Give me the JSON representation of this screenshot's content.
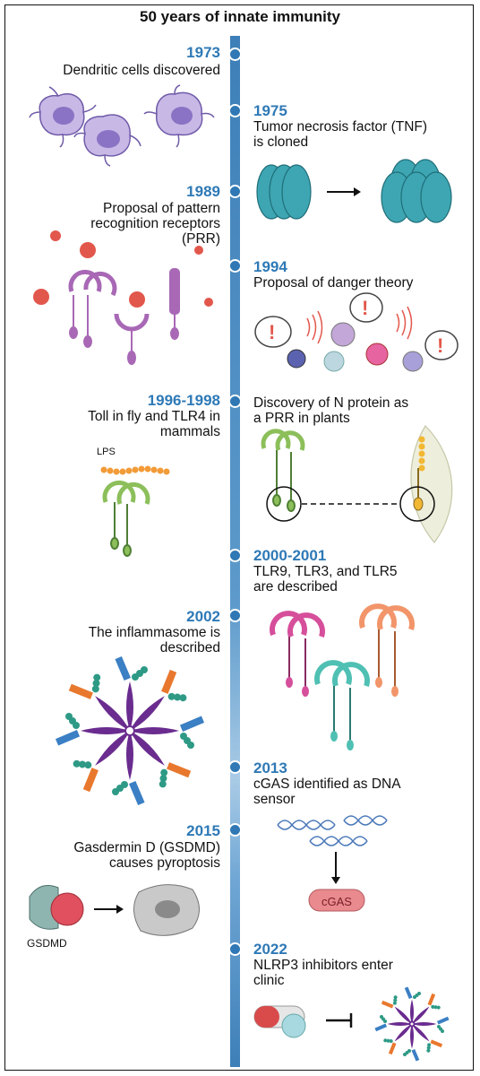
{
  "title": "50 years of innate immunity",
  "events": [
    {
      "year": "1973",
      "text": "Dendritic cells discovered"
    },
    {
      "year": "1975",
      "text": "Tumor necrosis factor (TNF)\nis cloned"
    },
    {
      "year": "1989",
      "text": "Proposal of pattern\nrecognition receptors\n(PRR)"
    },
    {
      "year": "1994",
      "text": "Proposal of danger theory"
    },
    {
      "year": "1996-1998",
      "text": "Toll in fly and TLR4 in\nmammals"
    },
    {
      "year": "",
      "text": "Discovery of N protein as\na PRR in plants"
    },
    {
      "year": "2000-2001",
      "text": "TLR9, TLR3, and TLR5\nare described"
    },
    {
      "year": "2002",
      "text": "The inflammasome is\ndescribed"
    },
    {
      "year": "2013",
      "text": "cGAS identified as DNA\nsensor"
    },
    {
      "year": "2015",
      "text": "Gasdermin D (GSDMD)\ncauses pyroptosis"
    },
    {
      "year": "2022",
      "text": "NLRP3 inhibitors enter\nclinic"
    }
  ],
  "labels": {
    "lps": "LPS",
    "cgas": "cGAS",
    "gsdmd": "GSDMD"
  },
  "colors": {
    "spine": "#3d7fb8",
    "year": "#2e79b6",
    "tnf": "#3ea6b3",
    "prr": "#a868b5",
    "pathogen": "#e2574c",
    "tlr4": "#8cbf5a",
    "lps": "#f29b38"
  }
}
